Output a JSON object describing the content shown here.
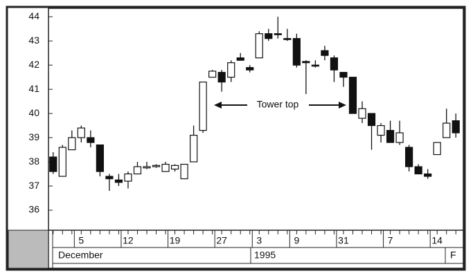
{
  "chart_data": {
    "type": "candlestick",
    "categories": [
      null,
      null,
      null,
      "5",
      null,
      null,
      null,
      null,
      "12",
      null,
      null,
      null,
      null,
      "19",
      null,
      null,
      null,
      null,
      "27",
      null,
      null,
      null,
      "3",
      null,
      null,
      null,
      "9",
      null,
      null,
      null,
      null,
      "31",
      null,
      null,
      null,
      null,
      "7",
      null,
      null,
      null,
      null,
      "14",
      null,
      null
    ],
    "open": [
      38.2,
      37.4,
      38.5,
      39.0,
      39.0,
      38.7,
      37.4,
      37.25,
      37.2,
      37.5,
      37.75,
      37.8,
      37.6,
      37.7,
      37.3,
      38.0,
      39.3,
      41.5,
      41.7,
      41.5,
      42.3,
      41.9,
      42.3,
      43.3,
      43.3,
      43.1,
      43.1,
      42.15,
      42.0,
      42.6,
      42.3,
      41.7,
      41.5,
      39.8,
      40.0,
      39.1,
      39.3,
      38.8,
      38.6,
      37.8,
      37.5,
      38.3,
      39.0,
      39.7
    ],
    "high": [
      38.4,
      38.7,
      39.3,
      39.5,
      39.3,
      38.7,
      37.5,
      37.5,
      37.6,
      38.0,
      38.0,
      37.9,
      38.0,
      37.9,
      37.9,
      39.5,
      41.3,
      41.8,
      41.8,
      42.2,
      42.5,
      42.0,
      43.4,
      43.5,
      44.0,
      43.5,
      43.3,
      42.2,
      42.2,
      42.8,
      42.4,
      41.7,
      41.5,
      40.5,
      40.0,
      39.6,
      39.7,
      39.7,
      38.7,
      37.9,
      37.7,
      38.8,
      40.2,
      40.0
    ],
    "low": [
      37.5,
      37.4,
      38.5,
      38.8,
      38.6,
      37.4,
      36.8,
      37.0,
      36.9,
      37.5,
      37.7,
      37.75,
      37.6,
      37.6,
      37.3,
      38.0,
      39.2,
      41.5,
      40.9,
      41.3,
      42.2,
      41.7,
      42.3,
      43.0,
      43.1,
      43.0,
      41.9,
      40.8,
      41.9,
      42.2,
      41.3,
      41.1,
      40.0,
      39.6,
      38.5,
      38.8,
      38.8,
      38.7,
      37.6,
      37.5,
      37.3,
      38.3,
      39.0,
      39.0
    ],
    "close": [
      37.6,
      38.6,
      39.0,
      39.4,
      38.8,
      37.6,
      37.3,
      37.15,
      37.5,
      37.8,
      37.8,
      37.85,
      37.9,
      37.85,
      37.9,
      39.1,
      41.3,
      41.75,
      41.3,
      42.1,
      42.2,
      41.8,
      43.3,
      43.1,
      43.3,
      43.1,
      42.0,
      42.1,
      42.0,
      42.4,
      41.8,
      41.5,
      40.0,
      40.2,
      39.5,
      39.5,
      38.8,
      39.2,
      37.8,
      37.5,
      37.4,
      38.8,
      39.6,
      39.2
    ],
    "ylim": [
      35.2,
      44.35
    ],
    "yticks": [
      36,
      37,
      38,
      39,
      40,
      41,
      42,
      43,
      44
    ],
    "months": [
      "December",
      "1995",
      "F"
    ],
    "annotation": "Tower top"
  }
}
